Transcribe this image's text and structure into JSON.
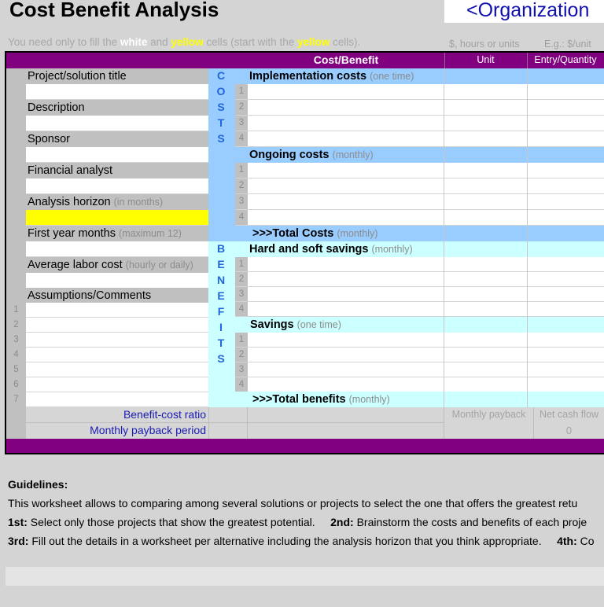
{
  "header": {
    "title": "Cost Benefit Analysis",
    "organization": "<Organization"
  },
  "hint": {
    "part1": "You need only to fill the ",
    "white_word": "white",
    "part2": " and ",
    "yellow_word": "yellow",
    "part3": " cells (start with the ",
    "yellow_word2": "yellow",
    "part4": " cells).",
    "unit_hint": "$, hours or units",
    "entry_hint": "E.g.: $/unit"
  },
  "table_header": {
    "cost_benefit": "Cost/Benefit",
    "unit": "Unit",
    "entry_quantity": "Entry/Quantity"
  },
  "left_fields": [
    {
      "label": "Project/solution title",
      "sub": ""
    },
    {
      "label": "Description",
      "sub": ""
    },
    {
      "label": "Sponsor",
      "sub": ""
    },
    {
      "label": "Financial analyst",
      "sub": ""
    },
    {
      "label": "Analysis horizon",
      "sub": "(in months)"
    },
    {
      "label": "First year months",
      "sub": "(maximum 12)"
    },
    {
      "label": "Average labor cost",
      "sub": "(hourly or daily)"
    },
    {
      "label": "Assumptions/Comments",
      "sub": ""
    }
  ],
  "assumption_numbers": [
    "1",
    "2",
    "3",
    "4",
    "5",
    "6",
    "7"
  ],
  "costs_letters": [
    "C",
    "O",
    "S",
    "T",
    "S"
  ],
  "benefits_letters": [
    "B",
    "E",
    "N",
    "E",
    "F",
    "I",
    "T",
    "S"
  ],
  "sections": {
    "implementation": {
      "label": "Implementation costs",
      "sub": "(one time)"
    },
    "ongoing": {
      "label": "Ongoing costs",
      "sub": "(monthly)"
    },
    "total_costs": {
      "label": ">>>Total Costs",
      "sub": "(monthly)"
    },
    "hard_soft": {
      "label": "Hard and soft savings",
      "sub": "(monthly)"
    },
    "savings": {
      "label": "Savings",
      "sub": "(one time)"
    },
    "total_benefits": {
      "label": ">>>Total benefits",
      "sub": "(monthly)"
    }
  },
  "row_numbers": [
    "1",
    "2",
    "3",
    "4"
  ],
  "footer_rows": {
    "benefit_cost_ratio": "Benefit-cost ratio",
    "monthly_payback_period": "Monthly payback period",
    "monthly_payback": "Monthly payback",
    "net_cash_flow": "Net cash flow",
    "net_cash_flow_value": "0"
  },
  "guidelines": {
    "title": "Guidelines:",
    "line1": "This worksheet allows to comparing among several solutions or projects to select the one that offers the greatest retu",
    "step1_label": "1st:",
    "step1_text": " Select only those projects that show the greatest potential.",
    "step2_label": "2nd:",
    "step2_text": " Brainstorm the costs and benefits of each proje",
    "step3_label": "3rd:",
    "step3_text": " Fill out the details in a worksheet per alternative including the analysis horizon that you think appropriate.",
    "step4_label": "4th:",
    "step4_text": " Co"
  },
  "colors": {
    "purple": "#800080",
    "costs_blue": "#99ccff",
    "benefits_cyan": "#ccffff",
    "input_yellow": "#ffff00",
    "letters_blue": "#2266dd",
    "org_text": "#1010b0"
  }
}
